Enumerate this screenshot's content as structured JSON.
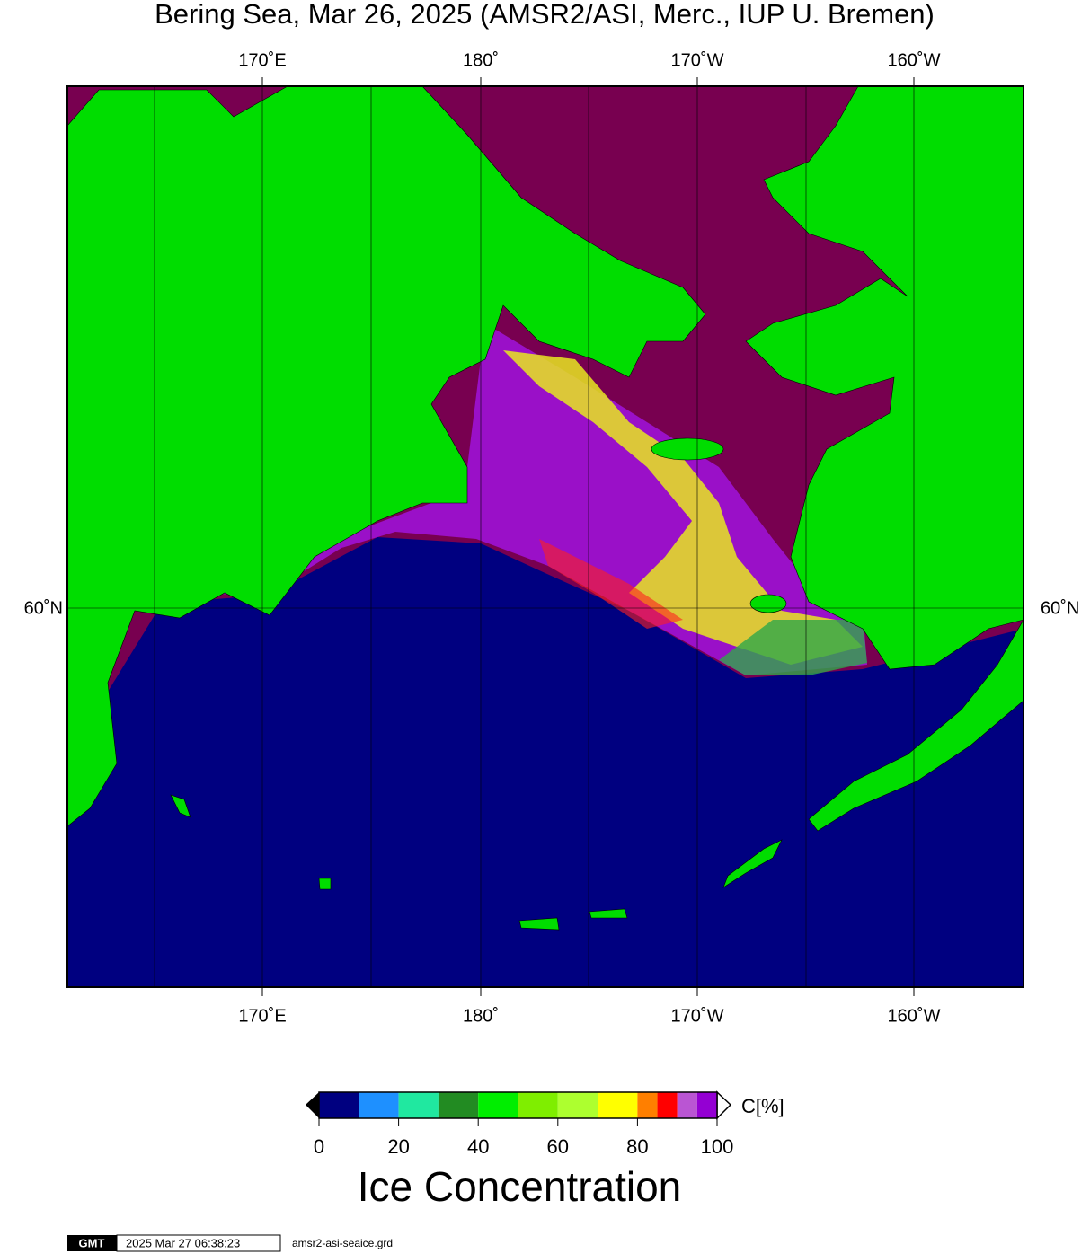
{
  "header": {
    "title": "Bering Sea, Mar 26, 2025 (AMSR2/ASI, Merc., IUP U. Bremen)"
  },
  "map": {
    "longitude_labels": [
      "170˚E",
      "180˚",
      "170˚W",
      "160˚W"
    ],
    "latitude_labels": [
      "60˚N"
    ]
  },
  "colorbar": {
    "bins": [
      0,
      10,
      20,
      30,
      40,
      50,
      60,
      70,
      80,
      85,
      90,
      95,
      100
    ],
    "colors": [
      "#000080",
      "#1e90ff",
      "#20e8a0",
      "#228b22",
      "#00ee00",
      "#7fee00",
      "#adff2f",
      "#ffff00",
      "#ff7f00",
      "#ff0000",
      "#ba55d3",
      "#9400d3"
    ],
    "ticks": [
      0,
      20,
      40,
      60,
      80,
      100
    ],
    "unit": "C[%]",
    "label": "Ice Concentration"
  },
  "footer": {
    "logo": "GMT",
    "timestamp": "2025 Mar 27 06:38:23",
    "file": "amsr2-asi-seaice.grd"
  }
}
